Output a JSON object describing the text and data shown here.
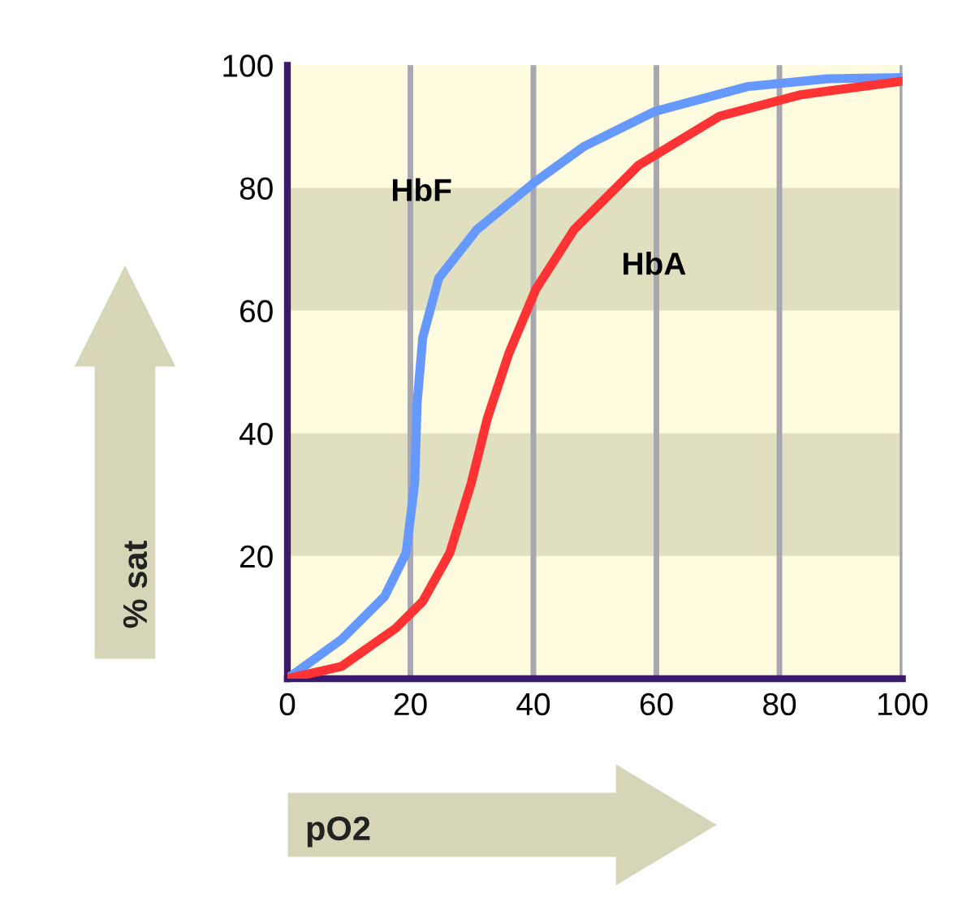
{
  "chart_data": {
    "type": "line",
    "xlabel": "pO2",
    "ylabel": "% sat",
    "xlim": [
      0,
      100
    ],
    "ylim": [
      0,
      100
    ],
    "xticks": [
      0,
      20,
      40,
      60,
      80,
      100
    ],
    "yticks": [
      20,
      40,
      60,
      80,
      100
    ],
    "grid": "x",
    "legend": false,
    "marker": "none",
    "line_style": "solid",
    "bands": [
      {
        "axis": "y",
        "from": 20,
        "to": 40,
        "color": "#e0dfc0"
      },
      {
        "axis": "y",
        "from": 60,
        "to": 80,
        "color": "#e0dfc0"
      }
    ],
    "series": [
      {
        "name": "HbF",
        "color": "#6699ff",
        "x": [
          0,
          8.8,
          15.8,
          19.3,
          20.7,
          21.1,
          22,
          24.6,
          30.8,
          40.4,
          48.3,
          59.8,
          74.7,
          87.9,
          100
        ],
        "values": [
          0,
          6.4,
          13.4,
          20.5,
          31.9,
          45,
          55.6,
          65.3,
          73.2,
          81.1,
          86.8,
          92.5,
          96.5,
          97.8,
          98
        ]
      },
      {
        "name": "HbA",
        "color": "#ff3333",
        "x": [
          0,
          8.8,
          17.6,
          22,
          26.4,
          29.9,
          32.5,
          36,
          40.4,
          46.6,
          57.1,
          70.3,
          83.5,
          100
        ],
        "values": [
          0,
          2,
          8.2,
          12.6,
          20.5,
          31.9,
          42.4,
          53,
          63.5,
          73.2,
          83.7,
          91.7,
          95.2,
          97.4
        ]
      }
    ]
  }
}
